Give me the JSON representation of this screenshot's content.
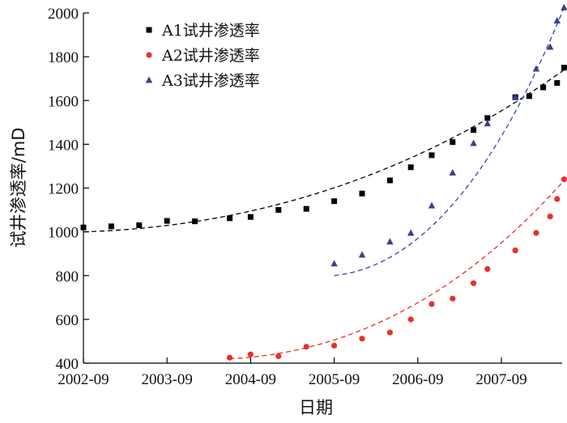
{
  "chart_data": {
    "type": "scatter",
    "xlabel": "日期",
    "ylabel": "试井渗透率/mD",
    "xticks": [
      "2002-09",
      "2003-09",
      "2004-09",
      "2005-09",
      "2006-09",
      "2007-09"
    ],
    "yticks": [
      "400",
      "600",
      "800",
      "1000",
      "1200",
      "1400",
      "1600",
      "1800",
      "2000"
    ],
    "xlim": [
      "2002-09",
      "2008-03"
    ],
    "ylim": [
      400,
      2000
    ],
    "legend_position": "top-left",
    "grid": false,
    "series": [
      {
        "name": "A1试井渗透率",
        "marker": "square",
        "color": "#000000",
        "trend_color": "#000000",
        "points": [
          [
            "2002-09",
            1020
          ],
          [
            "2003-01",
            1025
          ],
          [
            "2003-05",
            1030
          ],
          [
            "2003-09",
            1050
          ],
          [
            "2004-01",
            1048
          ],
          [
            "2004-06",
            1062
          ],
          [
            "2004-09",
            1068
          ],
          [
            "2005-01",
            1100
          ],
          [
            "2005-05",
            1105
          ],
          [
            "2005-09",
            1140
          ],
          [
            "2006-01",
            1175
          ],
          [
            "2006-05",
            1235
          ],
          [
            "2006-08",
            1295
          ],
          [
            "2006-11",
            1350
          ],
          [
            "2007-02",
            1410
          ],
          [
            "2007-05",
            1465
          ],
          [
            "2007-07",
            1520
          ],
          [
            "2007-11",
            1615
          ],
          [
            "2008-01",
            1620
          ],
          [
            "2008-03",
            1660
          ],
          [
            "2008-05",
            1680
          ],
          [
            "2008-06",
            1750
          ]
        ],
        "trend": [
          "2002-09",
          "2008-06",
          1000,
          1740
        ]
      },
      {
        "name": "A2试井渗透率",
        "marker": "circle",
        "color": "#e8302b",
        "trend_color": "#e8302b",
        "points": [
          [
            "2004-06",
            425
          ],
          [
            "2004-09",
            440
          ],
          [
            "2005-01",
            432
          ],
          [
            "2005-05",
            475
          ],
          [
            "2005-09",
            480
          ],
          [
            "2006-01",
            512
          ],
          [
            "2006-05",
            540
          ],
          [
            "2006-08",
            600
          ],
          [
            "2006-11",
            670
          ],
          [
            "2007-02",
            695
          ],
          [
            "2007-05",
            765
          ],
          [
            "2007-07",
            830
          ],
          [
            "2007-11",
            915
          ],
          [
            "2008-02",
            995
          ],
          [
            "2008-04",
            1070
          ],
          [
            "2008-05",
            1150
          ],
          [
            "2008-06",
            1240
          ]
        ],
        "trend": [
          "2004-06",
          "2008-06",
          420,
          1235
        ]
      },
      {
        "name": "A3试井渗透率",
        "marker": "triangle",
        "color": "#3a3f8f",
        "trend_color": "#3a3fbf",
        "points": [
          [
            "2005-09",
            855
          ],
          [
            "2006-01",
            895
          ],
          [
            "2006-05",
            955
          ],
          [
            "2006-08",
            995
          ],
          [
            "2006-11",
            1120
          ],
          [
            "2007-02",
            1270
          ],
          [
            "2007-05",
            1405
          ],
          [
            "2007-07",
            1495
          ],
          [
            "2007-11",
            1615
          ],
          [
            "2008-02",
            1745
          ],
          [
            "2008-04",
            1845
          ],
          [
            "2008-05",
            1965
          ],
          [
            "2008-06",
            2025
          ]
        ],
        "trend": [
          "2005-09",
          "2008-06",
          800,
          2025
        ]
      }
    ]
  }
}
